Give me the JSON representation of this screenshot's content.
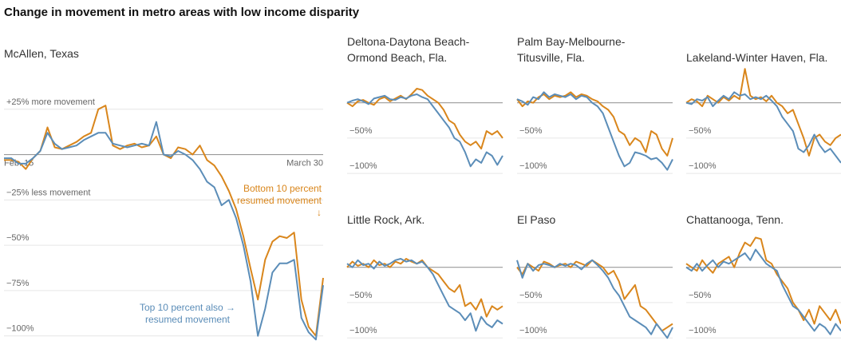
{
  "title": "Change in movement in metro areas with low income disparity",
  "chart_data": [
    {
      "type": "line",
      "title": [
        "McAllen, Texas"
      ],
      "ylim": [
        -105,
        50
      ],
      "baseline": 0,
      "yticks": [
        {
          "value": 25,
          "label": "+25% more movement"
        },
        {
          "value": -25,
          "label": "−25% less movement"
        },
        {
          "value": -50,
          "label": "−50%"
        },
        {
          "value": -75,
          "label": "−75%"
        },
        {
          "value": -100,
          "label": "−100%"
        }
      ],
      "grid": true,
      "categories": [
        "Feb. 15",
        null,
        null,
        null,
        null,
        null,
        null,
        null,
        null,
        null,
        null,
        null,
        null,
        null,
        null,
        null,
        null,
        null,
        null,
        null,
        null,
        null,
        null,
        null,
        null,
        null,
        null,
        null,
        null,
        null,
        null,
        null,
        null,
        null,
        null,
        null,
        null,
        null,
        null,
        null,
        null,
        null,
        null,
        null,
        "March 30"
      ],
      "series": [
        {
          "color": "#d9861c",
          "values": [
            -3,
            -3,
            -4,
            -8,
            -2,
            2,
            15,
            4,
            3,
            5,
            7,
            10,
            12,
            25,
            27,
            5,
            3,
            5,
            6,
            4,
            5,
            10,
            0,
            -2,
            4,
            3,
            0,
            5,
            -3,
            -6,
            -12,
            -20,
            -30,
            -45,
            -63,
            -80,
            -58,
            -48,
            -45,
            -46,
            -43,
            -80,
            -95,
            -100,
            -68
          ]
        },
        {
          "color": "#5b8db8",
          "values": [
            -2,
            -2,
            -5,
            -5,
            -2,
            2,
            12,
            6,
            3,
            4,
            5,
            8,
            10,
            12,
            12,
            6,
            5,
            4,
            5,
            6,
            5,
            18,
            0,
            -1,
            2,
            0,
            -3,
            -8,
            -15,
            -18,
            -28,
            -25,
            -35,
            -50,
            -70,
            -100,
            -85,
            -65,
            -60,
            -60,
            -58,
            -90,
            -98,
            -102,
            -72
          ]
        }
      ],
      "annotations": [
        {
          "text": [
            "Bottom 10 percent",
            "resumed movement",
            "↓"
          ],
          "color": "#d9861c"
        },
        {
          "text": [
            "Top 10 percent also →",
            "resumed movement"
          ],
          "color": "#5b8db8"
        }
      ]
    },
    {
      "type": "line",
      "title": [
        "Deltona-Daytona Beach-",
        "Ormond Beach, Fla."
      ],
      "ylim": [
        -110,
        55
      ],
      "baseline": 0,
      "yticks": [
        {
          "value": -50,
          "label": "−50%"
        },
        {
          "value": -100,
          "label": "−100%"
        }
      ],
      "grid": true,
      "categories": [
        null,
        null,
        null,
        null,
        null,
        null,
        null,
        null,
        null,
        null,
        null,
        null,
        null,
        null,
        null,
        null,
        null,
        null,
        null,
        null,
        null,
        null,
        null,
        null,
        null,
        null,
        null,
        null,
        null,
        null
      ],
      "series": [
        {
          "color": "#d9861c",
          "values": [
            0,
            -5,
            2,
            4,
            0,
            -3,
            5,
            8,
            2,
            6,
            10,
            5,
            12,
            20,
            18,
            10,
            5,
            0,
            -10,
            -25,
            -30,
            -45,
            -55,
            -60,
            -55,
            -65,
            -40,
            -45,
            -40,
            -50
          ]
        },
        {
          "color": "#5b8db8",
          "values": [
            0,
            3,
            5,
            2,
            -2,
            6,
            8,
            10,
            5,
            4,
            8,
            6,
            10,
            12,
            8,
            5,
            -5,
            -15,
            -25,
            -35,
            -50,
            -55,
            -70,
            -90,
            -80,
            -85,
            -70,
            -75,
            -88,
            -75
          ]
        }
      ]
    },
    {
      "type": "line",
      "title": [
        "Palm Bay-Melbourne-",
        "Titusville, Fla."
      ],
      "ylim": [
        -110,
        55
      ],
      "baseline": 0,
      "yticks": [
        {
          "value": -50,
          "label": "−50%"
        },
        {
          "value": -100,
          "label": "−100%"
        }
      ],
      "grid": true,
      "categories": [
        null,
        null,
        null,
        null,
        null,
        null,
        null,
        null,
        null,
        null,
        null,
        null,
        null,
        null,
        null,
        null,
        null,
        null,
        null,
        null,
        null,
        null,
        null,
        null,
        null,
        null,
        null,
        null,
        null,
        null
      ],
      "series": [
        {
          "color": "#d9861c",
          "values": [
            5,
            -5,
            2,
            0,
            8,
            12,
            5,
            10,
            8,
            10,
            15,
            8,
            12,
            10,
            5,
            2,
            -5,
            -10,
            -20,
            -40,
            -45,
            -60,
            -50,
            -55,
            -70,
            -40,
            -45,
            -65,
            -75,
            -50
          ]
        },
        {
          "color": "#5b8db8",
          "values": [
            5,
            2,
            -3,
            8,
            5,
            15,
            8,
            12,
            10,
            8,
            12,
            5,
            10,
            8,
            0,
            -5,
            -15,
            -35,
            -55,
            -75,
            -90,
            -85,
            -70,
            -72,
            -75,
            -80,
            -78,
            -85,
            -95,
            -80
          ]
        }
      ]
    },
    {
      "type": "line",
      "title": [
        "Lakeland-Winter Haven, Fla."
      ],
      "ylim": [
        -110,
        55
      ],
      "baseline": 0,
      "yticks": [
        {
          "value": -50,
          "label": "−50%"
        },
        {
          "value": -100,
          "label": "−100%"
        }
      ],
      "grid": true,
      "categories": [
        null,
        null,
        null,
        null,
        null,
        null,
        null,
        null,
        null,
        null,
        null,
        null,
        null,
        null,
        null,
        null,
        null,
        null,
        null,
        null,
        null,
        null,
        null,
        null,
        null,
        null,
        null,
        null,
        null,
        null
      ],
      "series": [
        {
          "color": "#d9861c",
          "values": [
            0,
            5,
            2,
            -5,
            10,
            5,
            0,
            8,
            3,
            10,
            5,
            48,
            10,
            5,
            8,
            2,
            10,
            0,
            -5,
            -15,
            -10,
            -30,
            -50,
            -75,
            -50,
            -45,
            -55,
            -60,
            -50,
            -45
          ]
        },
        {
          "color": "#5b8db8",
          "values": [
            0,
            -2,
            5,
            3,
            8,
            -5,
            3,
            10,
            5,
            15,
            10,
            12,
            5,
            8,
            5,
            10,
            3,
            -5,
            -20,
            -30,
            -40,
            -65,
            -70,
            -60,
            -45,
            -60,
            -70,
            -65,
            -75,
            -85
          ]
        }
      ]
    },
    {
      "type": "line",
      "title": [
        "Little Rock, Ark."
      ],
      "ylim": [
        -110,
        55
      ],
      "baseline": 0,
      "yticks": [
        {
          "value": -50,
          "label": "−50%"
        },
        {
          "value": -100,
          "label": "−100%"
        }
      ],
      "grid": true,
      "categories": [
        null,
        null,
        null,
        null,
        null,
        null,
        null,
        null,
        null,
        null,
        null,
        null,
        null,
        null,
        null,
        null,
        null,
        null,
        null,
        null,
        null,
        null,
        null,
        null,
        null,
        null,
        null,
        null,
        null,
        null
      ],
      "series": [
        {
          "color": "#d9861c",
          "values": [
            0,
            8,
            2,
            5,
            0,
            10,
            3,
            5,
            0,
            8,
            5,
            12,
            8,
            5,
            10,
            0,
            -5,
            -10,
            -20,
            -30,
            -35,
            -25,
            -55,
            -50,
            -60,
            -45,
            -70,
            -55,
            -60,
            -55
          ]
        },
        {
          "color": "#5b8db8",
          "values": [
            5,
            0,
            10,
            3,
            5,
            -2,
            8,
            2,
            5,
            10,
            12,
            8,
            10,
            5,
            8,
            0,
            -10,
            -25,
            -40,
            -55,
            -60,
            -65,
            -75,
            -65,
            -90,
            -70,
            -80,
            -85,
            -75,
            -80
          ]
        }
      ]
    },
    {
      "type": "line",
      "title": [
        "El Paso"
      ],
      "ylim": [
        -110,
        55
      ],
      "baseline": 0,
      "yticks": [
        {
          "value": -50,
          "label": "−50%"
        },
        {
          "value": -100,
          "label": "−100%"
        }
      ],
      "grid": true,
      "categories": [
        null,
        null,
        null,
        null,
        null,
        null,
        null,
        null,
        null,
        null,
        null,
        null,
        null,
        null,
        null,
        null,
        null,
        null,
        null,
        null,
        null,
        null,
        null,
        null,
        null,
        null,
        null,
        null,
        null,
        null
      ],
      "series": [
        {
          "color": "#d9861c",
          "values": [
            0,
            -10,
            5,
            0,
            -5,
            8,
            5,
            0,
            3,
            5,
            0,
            8,
            5,
            2,
            10,
            5,
            0,
            -10,
            -5,
            -20,
            -45,
            -35,
            -25,
            -55,
            -60,
            -70,
            -80,
            -90,
            -85,
            -80
          ]
        },
        {
          "color": "#5b8db8",
          "values": [
            10,
            -15,
            5,
            -5,
            3,
            5,
            3,
            0,
            5,
            2,
            5,
            3,
            -3,
            5,
            10,
            3,
            -5,
            -15,
            -30,
            -40,
            -55,
            -70,
            -75,
            -80,
            -85,
            -95,
            -80,
            -90,
            -100,
            -85
          ]
        }
      ]
    },
    {
      "type": "line",
      "title": [
        "Chattanooga, Tenn."
      ],
      "ylim": [
        -110,
        55
      ],
      "baseline": 0,
      "yticks": [
        {
          "value": -50,
          "label": "−50%"
        },
        {
          "value": -100,
          "label": "−100%"
        }
      ],
      "grid": true,
      "categories": [
        null,
        null,
        null,
        null,
        null,
        null,
        null,
        null,
        null,
        null,
        null,
        null,
        null,
        null,
        null,
        null,
        null,
        null,
        null,
        null,
        null,
        null,
        null,
        null,
        null,
        null,
        null,
        null,
        null,
        null
      ],
      "series": [
        {
          "color": "#d9861c",
          "values": [
            5,
            0,
            -5,
            10,
            0,
            -8,
            5,
            10,
            15,
            0,
            20,
            35,
            30,
            42,
            40,
            10,
            5,
            -10,
            -20,
            -30,
            -50,
            -60,
            -75,
            -60,
            -80,
            -55,
            -65,
            -75,
            -60,
            -80
          ]
        },
        {
          "color": "#5b8db8",
          "values": [
            0,
            -5,
            5,
            -5,
            3,
            10,
            0,
            8,
            5,
            10,
            15,
            20,
            10,
            25,
            15,
            5,
            0,
            -5,
            -25,
            -40,
            -55,
            -60,
            -70,
            -80,
            -90,
            -80,
            -85,
            -95,
            -80,
            -90
          ]
        }
      ]
    }
  ]
}
